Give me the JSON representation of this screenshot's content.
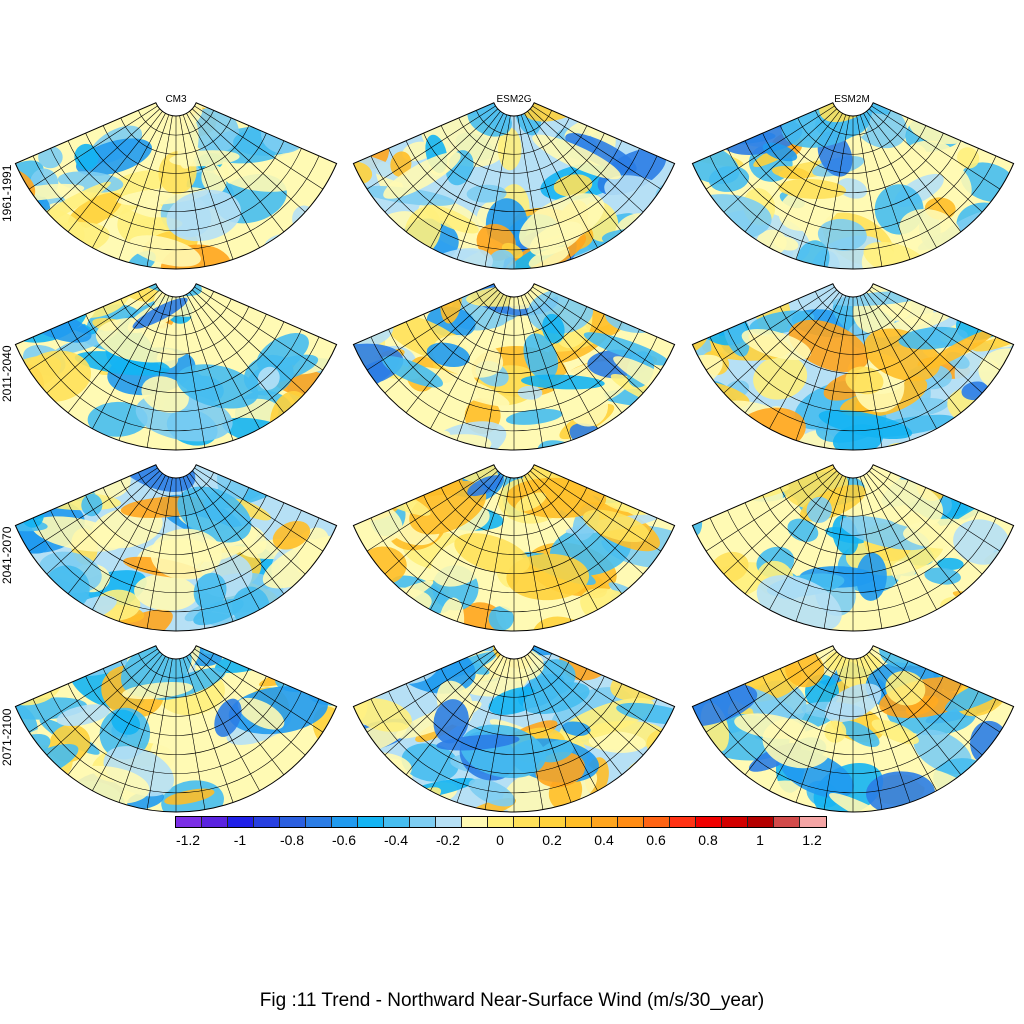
{
  "figure": {
    "caption": "Fig :11  Trend  - Northward Near-Surface Wind (m/s/30_year)",
    "columns": [
      "CM3",
      "ESM2G",
      "ESM2M"
    ],
    "rows": [
      "1961-1991",
      "2011-2040",
      "2041-2070",
      "2071-2100"
    ]
  },
  "colorbar": {
    "colors": [
      "#7b2ee6",
      "#5a23e0",
      "#2020e8",
      "#2840e0",
      "#2b5fe0",
      "#2b7de6",
      "#209aef",
      "#14b4f3",
      "#46bdf0",
      "#7dcdf2",
      "#b6e0f5",
      "#fffab4",
      "#fff07d",
      "#ffe15a",
      "#ffd23c",
      "#ffbe28",
      "#ffa51e",
      "#ff8c14",
      "#ff6414",
      "#ff3214",
      "#f00000",
      "#d20000",
      "#b40000",
      "#d24b4b",
      "#f5a5a5"
    ],
    "tick_labels": [
      "-1.2",
      "-1",
      "-0.8",
      "-0.6",
      "-0.4",
      "-0.2",
      "0",
      "0.2",
      "0.4",
      "0.6",
      "0.8",
      "1",
      "1.2"
    ],
    "tick_values": [
      -1.2,
      -1,
      -0.8,
      -0.6,
      -0.4,
      -0.2,
      0,
      0.2,
      0.4,
      0.6,
      0.8,
      1,
      1.2
    ]
  }
}
